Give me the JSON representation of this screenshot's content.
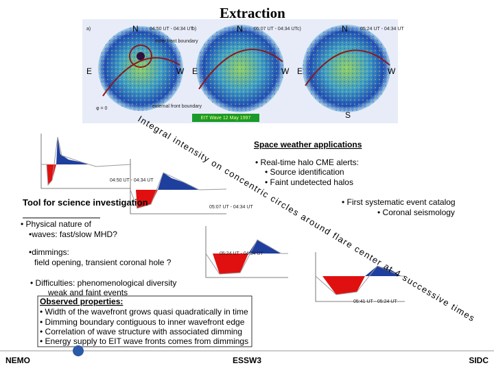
{
  "title": "Extraction",
  "panels": [
    {
      "label": "a)",
      "north": "N",
      "time": "04:50 UT - 04:34 UT",
      "east": "E",
      "west": "W",
      "inner": "inner front boundary",
      "phi": "φ = 0",
      "outer": "external front boundary"
    },
    {
      "label": "b)",
      "north": "N",
      "time": "05:07 UT - 04:34 UT",
      "east": "E",
      "west": "W"
    },
    {
      "label": "c)",
      "north": "N",
      "time": "05:24 UT - 04:34 UT",
      "east": "E",
      "west": "W",
      "south": "S"
    }
  ],
  "image_caption": "EIT Wave 12 May 1997",
  "diagonal_text": "Integral intensity on concentric circles around flare center at 4 successive times",
  "plots": [
    "04:50 UT - 04:34 UT",
    "05:07 UT - 04:34 UT",
    "05:24 UT - 04:34 UT",
    "05:41 UT - 05:24 UT"
  ],
  "space_weather": {
    "heading": "Space weather applications",
    "items": [
      "• Real-time halo CME alerts:",
      "• Source identification",
      "• Faint undetected halos"
    ],
    "more": [
      "• First systematic event catalog",
      "• Coronal seismology"
    ]
  },
  "science": {
    "heading": "Tool for science investigation",
    "items": [
      "• Physical nature of",
      "•waves: fast/slow MHD?",
      "•dimmings:",
      "field opening, transient coronal hole ?",
      "• Difficulties: phenomenological diversity",
      "weak and faint events"
    ]
  },
  "observed": {
    "heading": "Observed properties:",
    "items": [
      "• Width of the wavefront grows quasi quadratically in time",
      "• Dimming boundary contiguous to inner wavefront edge",
      "• Correlation of wave structure with associated dimming",
      "• Energy supply to EIT wave fronts comes from dimmings"
    ]
  },
  "footer": {
    "left": "NEMO",
    "center": "ESSW3",
    "right": "SIDC"
  }
}
